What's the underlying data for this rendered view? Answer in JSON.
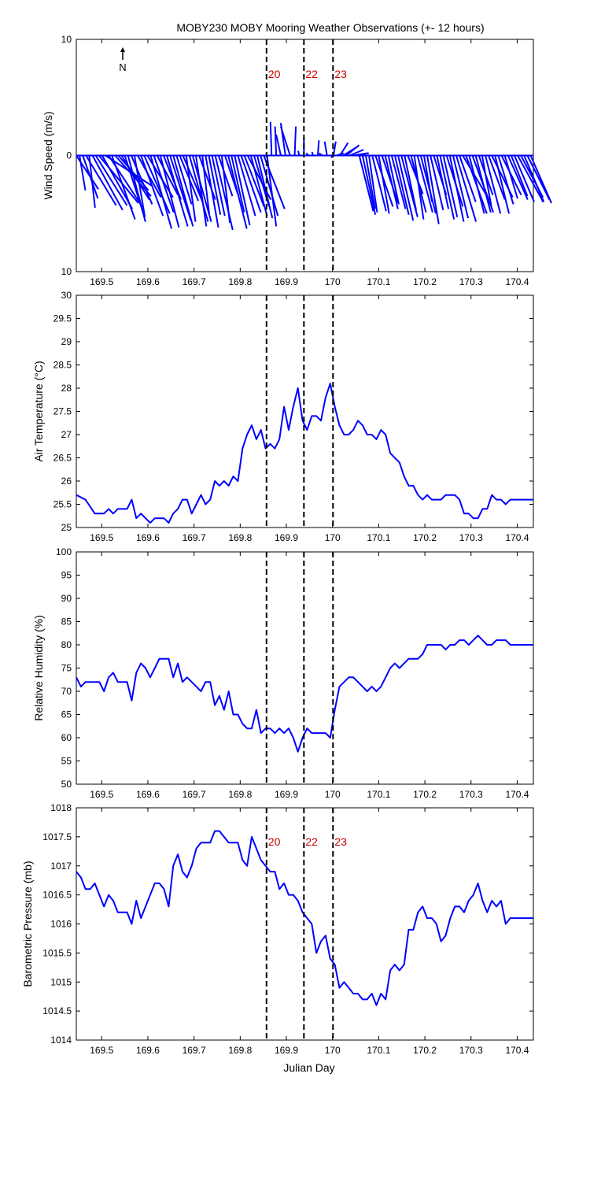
{
  "title": "MOBY230 MOBY Mooring Weather Observations (+- 12 hours)",
  "xlabel": "Julian Day",
  "north_label": "N",
  "colors": {
    "series": "#0000ff",
    "marker_label": "#cc0000",
    "axis": "#000000"
  },
  "x_ticks": [
    "169.5",
    "169.6",
    "169.7",
    "169.8",
    "169.9",
    "170",
    "170.1",
    "170.2",
    "170.3",
    "170.4"
  ],
  "markers": [
    {
      "x": 169.857,
      "label": "20"
    },
    {
      "x": 169.938,
      "label": "22"
    },
    {
      "x": 170.001,
      "label": "23"
    }
  ],
  "chart_data": [
    {
      "type": "quiver",
      "ylabel": "Wind Speed (m/s)",
      "xlim": [
        169.445,
        170.435
      ],
      "ylim": [
        -10,
        10
      ],
      "yticks": [
        "10",
        "0",
        "10"
      ],
      "marker_labels_shown": true,
      "x": [
        169.445,
        169.452,
        169.459,
        169.466,
        169.473,
        169.48,
        169.487,
        169.494,
        169.501,
        169.508,
        169.515,
        169.522,
        169.529,
        169.536,
        169.543,
        169.55,
        169.557,
        169.564,
        169.571,
        169.578,
        169.585,
        169.592,
        169.599,
        169.606,
        169.613,
        169.62,
        169.627,
        169.634,
        169.641,
        169.648,
        169.655,
        169.662,
        169.669,
        169.676,
        169.683,
        169.69,
        169.697,
        169.704,
        169.711,
        169.718,
        169.725,
        169.732,
        169.739,
        169.746,
        169.753,
        169.76,
        169.767,
        169.774,
        169.781,
        169.788,
        169.795,
        169.802,
        169.809,
        169.816,
        169.823,
        169.83,
        169.837,
        169.844,
        169.851,
        169.858,
        169.868,
        169.878,
        169.888,
        169.898,
        169.908,
        169.918,
        169.928,
        169.938,
        169.948,
        169.958,
        169.968,
        169.978,
        169.988,
        169.998,
        170.002,
        170.009,
        170.016,
        170.023,
        170.03,
        170.037,
        170.044,
        170.051,
        170.058,
        170.065,
        170.072,
        170.079,
        170.086,
        170.093,
        170.1,
        170.107,
        170.114,
        170.121,
        170.128,
        170.135,
        170.142,
        170.149,
        170.156,
        170.163,
        170.17,
        170.177,
        170.184,
        170.191,
        170.198,
        170.205,
        170.212,
        170.219,
        170.226,
        170.233,
        170.24,
        170.247,
        170.254,
        170.261,
        170.268,
        170.275,
        170.282,
        170.289,
        170.296,
        170.303,
        170.31,
        170.317,
        170.324,
        170.331,
        170.338,
        170.345,
        170.352,
        170.359,
        170.366,
        170.373,
        170.38,
        170.387,
        170.394,
        170.401,
        170.408,
        170.415,
        170.422,
        170.429
      ],
      "u": [
        1.9,
        0.5,
        1.3,
        2.6,
        0.5,
        2.6,
        2.7,
        3.4,
        2.6,
        4.0,
        2.7,
        2.0,
        3.1,
        2.6,
        2.4,
        1.7,
        1.5,
        1.8,
        0.9,
        2.0,
        1.9,
        2.2,
        2.2,
        1.8,
        1.7,
        1.8,
        1.6,
        1.5,
        1.8,
        1.8,
        1.7,
        1.3,
        1.6,
        1.7,
        0.8,
        1.6,
        1.6,
        0.9,
        1.4,
        0.6,
        1.1,
        1.0,
        1.1,
        1.5,
        1.2,
        0.7,
        1.1,
        1.6,
        1.1,
        1.3,
        1.5,
        1.7,
        1.7,
        2.0,
        1.4,
        1.3,
        1.3,
        1.5,
        1.8,
        0.8,
        -0.1,
        -0.1,
        -0.4,
        -0.4,
        -0.8,
        0.1,
        -0.1,
        0.0,
        -0.2,
        -0.1,
        0.1,
        -0.3,
        -0.2,
        0.0,
        0.2,
        0.6,
        0.7,
        1.3,
        1.1,
        1.2,
        1.3,
        1.1,
        1.2,
        1.1,
        0.8,
        0.7,
        1.2,
        1.5,
        0.9,
        1.4,
        1.1,
        0.9,
        1.2,
        1.2,
        1.3,
        1.4,
        1.0,
        1.3,
        1.3,
        0.8,
        1.3,
        1.3,
        0.7,
        1.0,
        1.1,
        1.1,
        1.0,
        1.2,
        1.2,
        1.4,
        1.2,
        1.3,
        1.7,
        1.4,
        2.1,
        1.8,
        1.3,
        1.8,
        1.3,
        1.2,
        0.8,
        1.3,
        1.4,
        1.8,
        1.2,
        1.3,
        1.7,
        1.1,
        1.7,
        1.4,
        1.7,
        2.2,
        1.9,
        1.7,
        1.9,
        1.8,
        1.4,
        1.9,
        1.5,
        1.8
      ],
      "v": [
        -2.9,
        -3.0,
        -3.7,
        -4.3,
        -4.5,
        -4.7,
        -4.3,
        -4.1,
        -4.6,
        -2.6,
        -4.1,
        -5.5,
        -3.5,
        -3.0,
        -3.8,
        -5.3,
        -5.7,
        -4.2,
        -5.3,
        -3.6,
        -5.2,
        -5.0,
        -3.6,
        -6.3,
        -4.9,
        -3.4,
        -6.2,
        -3.8,
        -6.1,
        -5.6,
        -6.1,
        -4.2,
        -3.9,
        -4.0,
        -5.7,
        -5.7,
        -5.7,
        -6.1,
        -3.8,
        -5.1,
        -6.2,
        -5.1,
        -5.2,
        -6.4,
        -3.5,
        -5.8,
        -3.3,
        -6.3,
        -4.9,
        -6.0,
        -5.2,
        -4.9,
        -4.4,
        -3.8,
        -5.2,
        -4.4,
        -5.4,
        -5.2,
        -4.6,
        -6.1,
        2.9,
        2.5,
        1.8,
        2.8,
        2.5,
        2.5,
        0.4,
        1.5,
        0.2,
        0.3,
        1.3,
        0.2,
        1.2,
        -0.2,
        1.2,
        0.2,
        1.1,
        0.8,
        0.9,
        0.5,
        0.2,
        0.2,
        -4.8,
        -5.1,
        -4.6,
        -4.9,
        -4.8,
        -4.4,
        -5.0,
        -4.1,
        -4.6,
        -4.2,
        -4.6,
        -5.1,
        -5.6,
        -5.3,
        -4.7,
        -3.3,
        -4.9,
        -5.5,
        -4.9,
        -5.0,
        -4.0,
        -5.9,
        -4.7,
        -3.4,
        -4.6,
        -5.5,
        -5.3,
        -4.4,
        -5.7,
        -5.4,
        -5.7,
        -4.0,
        -3.5,
        -5.0,
        -5.0,
        -4.9,
        -4.9,
        -3.4,
        -4.4,
        -5.0,
        -3.8,
        -3.6,
        -5.0,
        -4.2,
        -3.4,
        -3.7,
        -3.8,
        -3.5,
        -4.0,
        -4.0,
        -3.6,
        -4.0,
        -3.8,
        -4.1,
        -4.2,
        -3.8,
        -3.6,
        -4.3
      ]
    },
    {
      "type": "line",
      "ylabel": "Air Temperature (°C)",
      "xlim": [
        169.445,
        170.435
      ],
      "ylim": [
        25,
        30
      ],
      "yticks": [
        "25",
        "25.5",
        "26",
        "26.5",
        "27",
        "27.5",
        "28",
        "28.5",
        "29",
        "29.5",
        "30"
      ],
      "marker_labels_shown": false,
      "x": [
        169.445,
        169.455,
        169.465,
        169.475,
        169.485,
        169.495,
        169.505,
        169.515,
        169.525,
        169.535,
        169.545,
        169.555,
        169.565,
        169.575,
        169.585,
        169.595,
        169.605,
        169.615,
        169.625,
        169.635,
        169.645,
        169.655,
        169.665,
        169.675,
        169.685,
        169.695,
        169.705,
        169.715,
        169.725,
        169.735,
        169.745,
        169.755,
        169.765,
        169.775,
        169.785,
        169.795,
        169.805,
        169.815,
        169.825,
        169.835,
        169.845,
        169.855,
        169.865,
        169.875,
        169.885,
        169.895,
        169.905,
        169.915,
        169.925,
        169.935,
        169.945,
        169.955,
        169.965,
        169.975,
        169.985,
        169.995,
        170.005,
        170.015,
        170.025,
        170.035,
        170.045,
        170.055,
        170.065,
        170.075,
        170.085,
        170.095,
        170.105,
        170.115,
        170.125,
        170.135,
        170.145,
        170.155,
        170.165,
        170.175,
        170.185,
        170.195,
        170.205,
        170.215,
        170.225,
        170.235,
        170.245,
        170.255,
        170.265,
        170.275,
        170.285,
        170.295,
        170.305,
        170.315,
        170.325,
        170.335,
        170.345,
        170.355,
        170.365,
        170.375,
        170.385,
        170.395,
        170.405,
        170.415,
        170.425,
        170.435
      ],
      "y": [
        25.7,
        25.65,
        25.6,
        25.45,
        25.3,
        25.3,
        25.3,
        25.4,
        25.3,
        25.4,
        25.4,
        25.4,
        25.6,
        25.2,
        25.3,
        25.2,
        25.1,
        25.2,
        25.2,
        25.2,
        25.1,
        25.3,
        25.4,
        25.6,
        25.6,
        25.3,
        25.5,
        25.7,
        25.5,
        25.6,
        26.0,
        25.9,
        26.0,
        25.9,
        26.1,
        26.0,
        26.7,
        27.0,
        27.2,
        26.9,
        27.1,
        26.7,
        26.8,
        26.7,
        26.9,
        27.6,
        27.1,
        27.6,
        28.0,
        27.3,
        27.1,
        27.4,
        27.4,
        27.3,
        27.8,
        28.1,
        27.6,
        27.2,
        27.0,
        27.0,
        27.1,
        27.3,
        27.2,
        27.0,
        27.0,
        26.9,
        27.1,
        27.0,
        26.6,
        26.5,
        26.4,
        26.1,
        25.9,
        25.9,
        25.7,
        25.6,
        25.7,
        25.6,
        25.6,
        25.6,
        25.7,
        25.7,
        25.7,
        25.6,
        25.3,
        25.3,
        25.2,
        25.2,
        25.4,
        25.4,
        25.7,
        25.6,
        25.6,
        25.5,
        25.6,
        25.6,
        25.6,
        25.6,
        25.6,
        25.6
      ]
    },
    {
      "type": "line",
      "ylabel": "Relative Humidity (%)",
      "xlim": [
        169.445,
        170.435
      ],
      "ylim": [
        50,
        100
      ],
      "yticks": [
        "50",
        "55",
        "60",
        "65",
        "70",
        "75",
        "80",
        "85",
        "90",
        "95",
        "100"
      ],
      "marker_labels_shown": false,
      "x": [
        169.445,
        169.455,
        169.465,
        169.475,
        169.485,
        169.495,
        169.505,
        169.515,
        169.525,
        169.535,
        169.545,
        169.555,
        169.565,
        169.575,
        169.585,
        169.595,
        169.605,
        169.615,
        169.625,
        169.635,
        169.645,
        169.655,
        169.665,
        169.675,
        169.685,
        169.695,
        169.705,
        169.715,
        169.725,
        169.735,
        169.745,
        169.755,
        169.765,
        169.775,
        169.785,
        169.795,
        169.805,
        169.815,
        169.825,
        169.835,
        169.845,
        169.855,
        169.865,
        169.875,
        169.885,
        169.895,
        169.905,
        169.915,
        169.925,
        169.935,
        169.945,
        169.955,
        169.965,
        169.975,
        169.985,
        169.995,
        170.005,
        170.015,
        170.025,
        170.035,
        170.045,
        170.055,
        170.065,
        170.075,
        170.085,
        170.095,
        170.105,
        170.115,
        170.125,
        170.135,
        170.145,
        170.155,
        170.165,
        170.175,
        170.185,
        170.195,
        170.205,
        170.215,
        170.225,
        170.235,
        170.245,
        170.255,
        170.265,
        170.275,
        170.285,
        170.295,
        170.305,
        170.315,
        170.325,
        170.335,
        170.345,
        170.355,
        170.365,
        170.375,
        170.385,
        170.395,
        170.405,
        170.415,
        170.425,
        170.435
      ],
      "y": [
        73,
        71,
        72,
        72,
        72,
        72,
        70,
        73,
        74,
        72,
        72,
        72,
        68,
        74,
        76,
        75,
        73,
        75,
        77,
        77,
        77,
        73,
        76,
        72,
        73,
        72,
        71,
        70,
        72,
        72,
        67,
        69,
        66,
        70,
        65,
        65,
        63,
        62,
        62,
        66,
        61,
        62,
        62,
        61,
        62,
        61,
        62,
        60,
        57,
        60,
        62,
        61,
        61,
        61,
        61,
        60,
        66,
        71,
        72,
        73,
        73,
        72,
        71,
        70,
        71,
        70,
        71,
        73,
        75,
        76,
        75,
        76,
        77,
        77,
        77,
        78,
        80,
        80,
        80,
        80,
        79,
        80,
        80,
        81,
        81,
        80,
        81,
        82,
        81,
        80,
        80,
        81,
        81,
        81,
        80,
        80,
        80,
        80,
        80,
        80
      ]
    },
    {
      "type": "line",
      "ylabel": "Barometric Pressure (mb)",
      "xlim": [
        169.445,
        170.435
      ],
      "ylim": [
        1014,
        1018
      ],
      "yticks": [
        "1014",
        "1014.5",
        "1015",
        "1015.5",
        "1016",
        "1016.5",
        "1017",
        "1017.5",
        "1018"
      ],
      "marker_labels_shown": true,
      "x": [
        169.445,
        169.455,
        169.465,
        169.475,
        169.485,
        169.495,
        169.505,
        169.515,
        169.525,
        169.535,
        169.545,
        169.555,
        169.565,
        169.575,
        169.585,
        169.595,
        169.605,
        169.615,
        169.625,
        169.635,
        169.645,
        169.655,
        169.665,
        169.675,
        169.685,
        169.695,
        169.705,
        169.715,
        169.725,
        169.735,
        169.745,
        169.755,
        169.765,
        169.775,
        169.785,
        169.795,
        169.805,
        169.815,
        169.825,
        169.835,
        169.845,
        169.855,
        169.865,
        169.875,
        169.885,
        169.895,
        169.905,
        169.915,
        169.925,
        169.935,
        169.945,
        169.955,
        169.965,
        169.975,
        169.985,
        169.995,
        170.005,
        170.015,
        170.025,
        170.035,
        170.045,
        170.055,
        170.065,
        170.075,
        170.085,
        170.095,
        170.105,
        170.115,
        170.125,
        170.135,
        170.145,
        170.155,
        170.165,
        170.175,
        170.185,
        170.195,
        170.205,
        170.215,
        170.225,
        170.235,
        170.245,
        170.255,
        170.265,
        170.275,
        170.285,
        170.295,
        170.305,
        170.315,
        170.325,
        170.335,
        170.345,
        170.355,
        170.365,
        170.375,
        170.385,
        170.395,
        170.405,
        170.415,
        170.425,
        170.435
      ],
      "y": [
        1016.9,
        1016.8,
        1016.6,
        1016.6,
        1016.7,
        1016.5,
        1016.3,
        1016.5,
        1016.4,
        1016.2,
        1016.2,
        1016.2,
        1016.0,
        1016.4,
        1016.1,
        1016.3,
        1016.5,
        1016.7,
        1016.7,
        1016.6,
        1016.3,
        1017.0,
        1017.2,
        1016.9,
        1016.8,
        1017.0,
        1017.3,
        1017.4,
        1017.4,
        1017.4,
        1017.6,
        1017.6,
        1017.5,
        1017.4,
        1017.4,
        1017.4,
        1017.1,
        1017.0,
        1017.5,
        1017.3,
        1017.1,
        1017.0,
        1016.9,
        1016.9,
        1016.6,
        1016.7,
        1016.5,
        1016.5,
        1016.4,
        1016.2,
        1016.1,
        1016.0,
        1015.5,
        1015.7,
        1015.8,
        1015.4,
        1015.3,
        1014.9,
        1015.0,
        1014.9,
        1014.8,
        1014.8,
        1014.7,
        1014.7,
        1014.8,
        1014.6,
        1014.8,
        1014.7,
        1015.2,
        1015.3,
        1015.2,
        1015.3,
        1015.9,
        1015.9,
        1016.2,
        1016.3,
        1016.1,
        1016.1,
        1016.0,
        1015.7,
        1015.8,
        1016.1,
        1016.3,
        1016.3,
        1016.2,
        1016.4,
        1016.5,
        1016.7,
        1016.4,
        1016.2,
        1016.4,
        1016.3,
        1016.4,
        1016.0,
        1016.1,
        1016.1,
        1016.1,
        1016.1,
        1016.1,
        1016.1
      ]
    }
  ]
}
